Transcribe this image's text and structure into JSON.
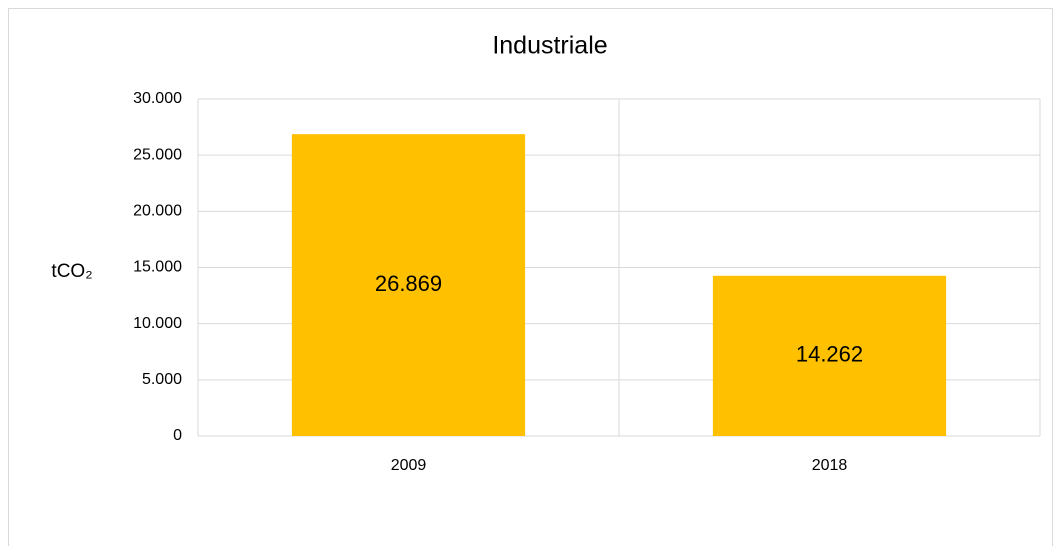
{
  "chart_data": {
    "type": "bar",
    "title": "Industriale",
    "ylabel": "tCO₂",
    "categories": [
      "2009",
      "2018"
    ],
    "values": [
      26869,
      14262
    ],
    "value_labels": [
      "26.869",
      "14.262"
    ],
    "color": "#ffc000",
    "ylim": [
      0,
      30000
    ],
    "yticks": [
      0,
      {
        "value": 5000,
        "label": "5.000"
      },
      {
        "value": 10000,
        "label": "10.000"
      },
      {
        "value": 15000,
        "label": "15.000"
      },
      {
        "value": 20000,
        "label": "20.000"
      },
      {
        "value": 25000,
        "label": "25.000"
      },
      {
        "value": 30000,
        "label": "30.000"
      }
    ],
    "grid": true
  }
}
